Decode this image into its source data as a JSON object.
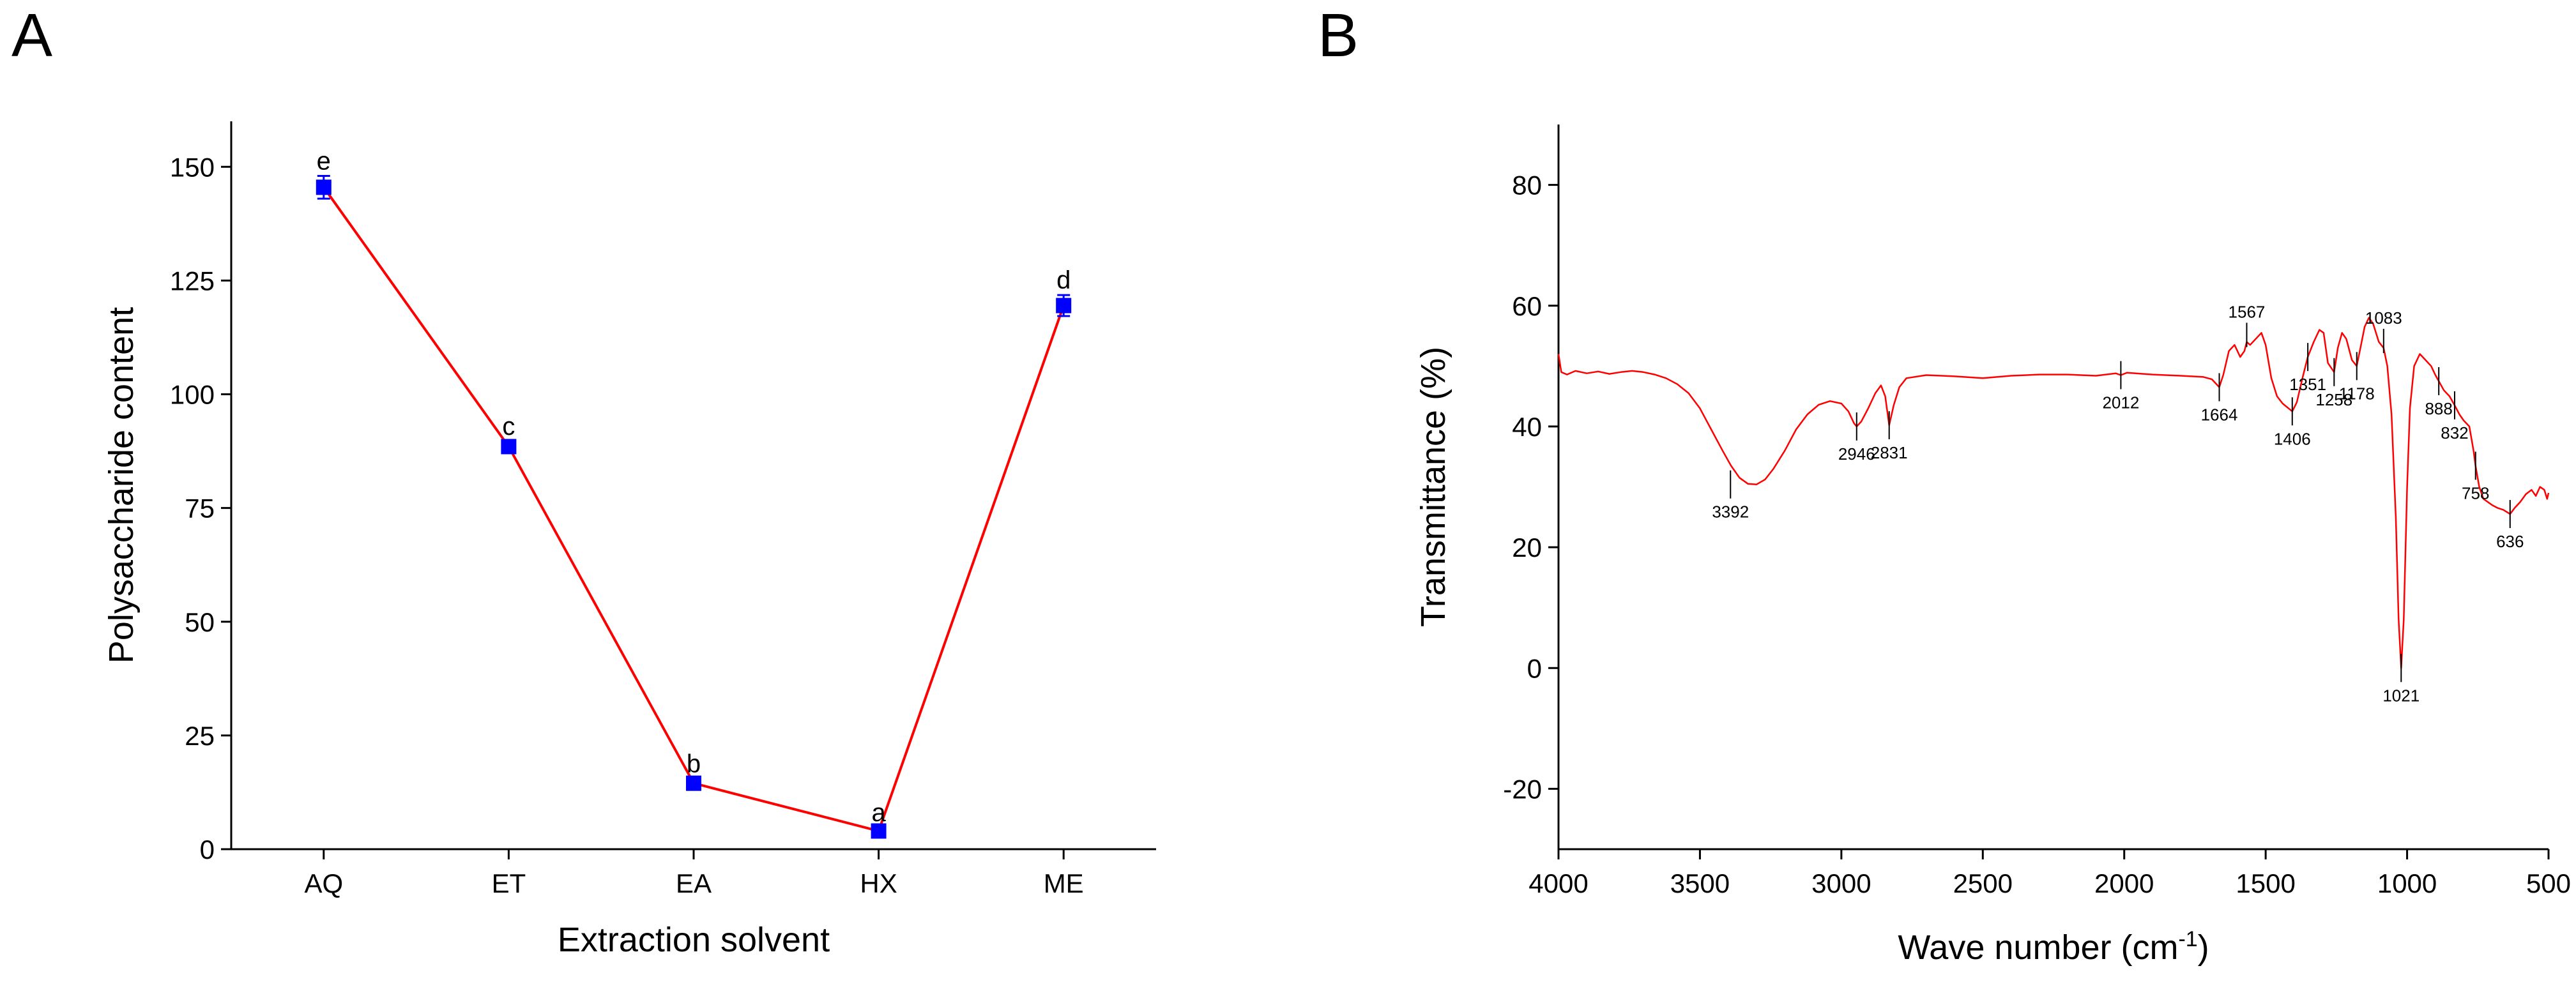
{
  "panels": [
    {
      "letter": "A"
    },
    {
      "letter": "B"
    }
  ],
  "colors": {
    "line": "#ff0000",
    "marker": "#0000ff",
    "axis": "#000000"
  },
  "chart_data": [
    {
      "type": "line",
      "title": "",
      "xlabel": "Extraction solvent",
      "ylabel": "Polysaccharide content",
      "categories": [
        "AQ",
        "ET",
        "EA",
        "HX",
        "ME"
      ],
      "values": [
        145.5,
        88.5,
        14.5,
        4.0,
        119.5
      ],
      "errors": [
        2.5,
        1.2,
        1.0,
        0.8,
        2.3
      ],
      "significance_labels": [
        "e",
        "c",
        "b",
        "a",
        "d"
      ],
      "ylim": [
        0,
        160
      ],
      "yticks": [
        0,
        25,
        50,
        75,
        100,
        125,
        150
      ],
      "marker": "square",
      "grid": false,
      "legend": "none"
    },
    {
      "type": "line",
      "title": "",
      "xlabel": "Wave number (cm",
      "xlabel_sup": "-1",
      "xlabel_end": ")",
      "ylabel": "Transmittance (%)",
      "xlim": [
        4000,
        500
      ],
      "xticks": [
        4000,
        3500,
        3000,
        2500,
        2000,
        1500,
        1000,
        500
      ],
      "ylim": [
        -30,
        90
      ],
      "yticks": [
        -20,
        0,
        20,
        40,
        60,
        80
      ],
      "grid": false,
      "legend": "none",
      "spectrum": [
        [
          4000,
          52
        ],
        [
          3990,
          49
        ],
        [
          3970,
          48.6
        ],
        [
          3940,
          49.2
        ],
        [
          3900,
          48.8
        ],
        [
          3860,
          49.1
        ],
        [
          3820,
          48.7
        ],
        [
          3780,
          49.0
        ],
        [
          3740,
          49.2
        ],
        [
          3700,
          49.0
        ],
        [
          3660,
          48.6
        ],
        [
          3620,
          48.0
        ],
        [
          3580,
          47.0
        ],
        [
          3540,
          45.5
        ],
        [
          3500,
          43.0
        ],
        [
          3460,
          39.5
        ],
        [
          3420,
          36.0
        ],
        [
          3390,
          33.5
        ],
        [
          3360,
          31.5
        ],
        [
          3330,
          30.5
        ],
        [
          3300,
          30.4
        ],
        [
          3270,
          31.2
        ],
        [
          3240,
          33.0
        ],
        [
          3200,
          36.0
        ],
        [
          3160,
          39.5
        ],
        [
          3120,
          42.0
        ],
        [
          3080,
          43.6
        ],
        [
          3040,
          44.2
        ],
        [
          3000,
          43.8
        ],
        [
          2975,
          42.5
        ],
        [
          2955,
          40.5
        ],
        [
          2946,
          40.0
        ],
        [
          2930,
          40.8
        ],
        [
          2905,
          43.0
        ],
        [
          2880,
          45.5
        ],
        [
          2860,
          46.8
        ],
        [
          2845,
          45.0
        ],
        [
          2831,
          40.2
        ],
        [
          2815,
          43.5
        ],
        [
          2795,
          46.5
        ],
        [
          2770,
          48.0
        ],
        [
          2700,
          48.5
        ],
        [
          2600,
          48.3
        ],
        [
          2500,
          48.0
        ],
        [
          2400,
          48.4
        ],
        [
          2300,
          48.6
        ],
        [
          2200,
          48.6
        ],
        [
          2100,
          48.4
        ],
        [
          2030,
          48.8
        ],
        [
          2012,
          48.5
        ],
        [
          1990,
          48.9
        ],
        [
          1900,
          48.6
        ],
        [
          1800,
          48.4
        ],
        [
          1720,
          48.2
        ],
        [
          1690,
          47.8
        ],
        [
          1664,
          46.5
        ],
        [
          1650,
          48.5
        ],
        [
          1630,
          52.5
        ],
        [
          1610,
          53.5
        ],
        [
          1590,
          51.5
        ],
        [
          1575,
          52.5
        ],
        [
          1567,
          54.0
        ],
        [
          1555,
          53.5
        ],
        [
          1535,
          54.5
        ],
        [
          1515,
          55.5
        ],
        [
          1500,
          53.5
        ],
        [
          1480,
          48.0
        ],
        [
          1460,
          45.0
        ],
        [
          1440,
          43.8
        ],
        [
          1406,
          42.5
        ],
        [
          1390,
          44.0
        ],
        [
          1370,
          48.0
        ],
        [
          1351,
          51.5
        ],
        [
          1330,
          54.0
        ],
        [
          1310,
          56.0
        ],
        [
          1295,
          55.5
        ],
        [
          1280,
          50.5
        ],
        [
          1258,
          49.0
        ],
        [
          1245,
          53.0
        ],
        [
          1230,
          55.5
        ],
        [
          1215,
          54.5
        ],
        [
          1195,
          51.0
        ],
        [
          1178,
          50.0
        ],
        [
          1165,
          53.0
        ],
        [
          1150,
          56.5
        ],
        [
          1135,
          58.0
        ],
        [
          1120,
          57.0
        ],
        [
          1100,
          54.0
        ],
        [
          1083,
          53.0
        ],
        [
          1070,
          50.0
        ],
        [
          1055,
          42.0
        ],
        [
          1040,
          25.0
        ],
        [
          1030,
          8.0
        ],
        [
          1021,
          0.0
        ],
        [
          1012,
          8.0
        ],
        [
          1000,
          30.0
        ],
        [
          990,
          43.0
        ],
        [
          975,
          50.0
        ],
        [
          955,
          52.0
        ],
        [
          935,
          51.0
        ],
        [
          915,
          50.0
        ],
        [
          900,
          48.5
        ],
        [
          888,
          47.5
        ],
        [
          870,
          46.0
        ],
        [
          850,
          45.0
        ],
        [
          832,
          43.5
        ],
        [
          815,
          42.0
        ],
        [
          800,
          41.0
        ],
        [
          780,
          40.0
        ],
        [
          765,
          36.0
        ],
        [
          758,
          33.5
        ],
        [
          745,
          30.0
        ],
        [
          730,
          28.0
        ],
        [
          715,
          27.5
        ],
        [
          700,
          27.0
        ],
        [
          680,
          26.5
        ],
        [
          660,
          26.2
        ],
        [
          636,
          25.5
        ],
        [
          620,
          26.5
        ],
        [
          600,
          27.5
        ],
        [
          580,
          28.8
        ],
        [
          560,
          29.5
        ],
        [
          545,
          28.5
        ],
        [
          530,
          30.0
        ],
        [
          515,
          29.5
        ],
        [
          505,
          28.0
        ],
        [
          500,
          29.0
        ]
      ],
      "peaks": [
        {
          "x": 3392,
          "label": "3392",
          "y": 30.4,
          "side": "below"
        },
        {
          "x": 2946,
          "label": "2946",
          "y": 40.0,
          "side": "below"
        },
        {
          "x": 2831,
          "label": "2831",
          "y": 40.2,
          "side": "below"
        },
        {
          "x": 2012,
          "label": "2012",
          "y": 48.5,
          "side": "below"
        },
        {
          "x": 1664,
          "label": "1664",
          "y": 46.5,
          "side": "below"
        },
        {
          "x": 1567,
          "label": "1567",
          "y": 54.0,
          "side": "above"
        },
        {
          "x": 1406,
          "label": "1406",
          "y": 42.5,
          "side": "below"
        },
        {
          "x": 1351,
          "label": "1351",
          "y": 51.5,
          "side": "below"
        },
        {
          "x": 1258,
          "label": "1258",
          "y": 49.0,
          "side": "below"
        },
        {
          "x": 1178,
          "label": "1178",
          "y": 50.0,
          "side": "below"
        },
        {
          "x": 1083,
          "label": "1083",
          "y": 53.0,
          "side": "above"
        },
        {
          "x": 1021,
          "label": "1021",
          "y": 0.0,
          "side": "below"
        },
        {
          "x": 888,
          "label": "888",
          "y": 47.5,
          "side": "below"
        },
        {
          "x": 832,
          "label": "832",
          "y": 43.5,
          "side": "below"
        },
        {
          "x": 758,
          "label": "758",
          "y": 33.5,
          "side": "below"
        },
        {
          "x": 636,
          "label": "636",
          "y": 25.5,
          "side": "below"
        }
      ]
    }
  ]
}
